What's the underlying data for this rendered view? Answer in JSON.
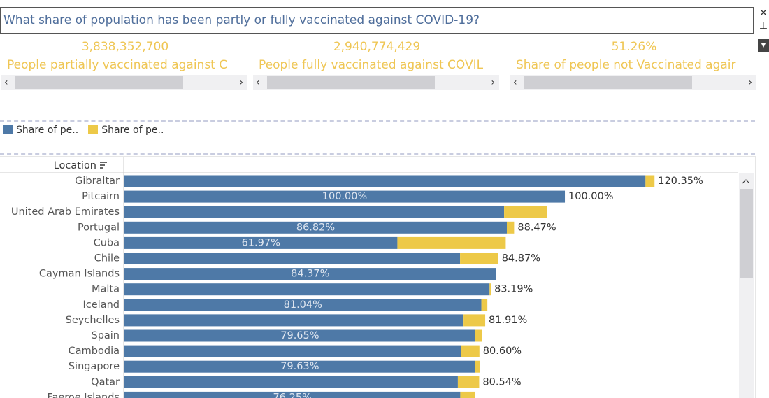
{
  "header": {
    "title": "What share of population has been partly or fully vaccinated against COVID-19?"
  },
  "kpis": [
    {
      "value": "3,838,352,700",
      "label": "People partially vaccinated against C"
    },
    {
      "value": "2,940,774,429",
      "label": "People fully vaccinated against COVIL"
    },
    {
      "value": "51.26%",
      "label": "Share of people not Vaccinated agair"
    }
  ],
  "chart_data": {
    "type": "bar",
    "orientation": "horizontal",
    "axis_label": "Location",
    "categories": [
      "Gibraltar",
      "Pitcairn",
      "United Arab Emirates",
      "Portugal",
      "Cuba",
      "Chile",
      "Cayman Islands",
      "Malta",
      "Iceland",
      "Seychelles",
      "Spain",
      "Cambodia",
      "Singapore",
      "Qatar",
      "Faeroe Islands"
    ],
    "series": [
      {
        "name": "Share of pe..",
        "color": "#4e79a7",
        "values": [
          118.3,
          100,
          86.2,
          86.82,
          61.97,
          76.2,
          84.37,
          82.9,
          81.04,
          77.0,
          79.65,
          76.5,
          79.63,
          75.7,
          76.25
        ],
        "value_labels": [
          null,
          "100.00%",
          null,
          "86.82%",
          "61.97%",
          null,
          "84.37%",
          null,
          "81.04%",
          null,
          "79.65%",
          null,
          "79.63%",
          null,
          "76.25%"
        ]
      },
      {
        "name": "Share of pe..",
        "color": "#edc948",
        "values": [
          2.05,
          0,
          9.8,
          1.65,
          24.6,
          8.67,
          0,
          0.29,
          1.36,
          4.91,
          1.6,
          4.1,
          1.0,
          4.84,
          3.4
        ]
      }
    ],
    "total_labels": [
      "120.35%",
      "100.00%",
      null,
      "88.47%",
      null,
      "84.87%",
      null,
      "83.19%",
      null,
      "81.91%",
      null,
      "80.60%",
      null,
      "80.54%",
      null
    ],
    "xlim": [
      0,
      139.2
    ]
  }
}
